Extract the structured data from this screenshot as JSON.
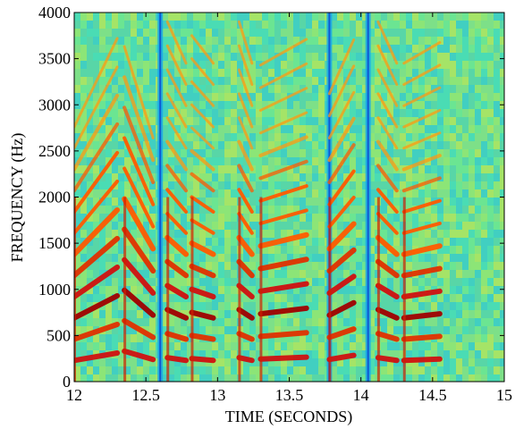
{
  "chart_data": {
    "type": "heatmap",
    "title": "",
    "xlabel": "TIME (SECONDS)",
    "ylabel": "FREQUENCY (Hz)",
    "xlim": [
      12,
      15
    ],
    "ylim": [
      0,
      4000
    ],
    "x_ticks": [
      12,
      12.5,
      13,
      13.5,
      14,
      14.5,
      15
    ],
    "x_tick_labels": [
      "12",
      "12.5",
      "13",
      "13.5",
      "14",
      "14.5",
      "15"
    ],
    "y_ticks": [
      0,
      500,
      1000,
      1500,
      2000,
      2500,
      3000,
      3500,
      4000
    ],
    "y_tick_labels": [
      "0",
      "500",
      "1000",
      "1500",
      "2000",
      "2500",
      "3000",
      "3500",
      "4000"
    ],
    "grid": false,
    "colormap": [
      "#00007f",
      "#0070ff",
      "#00ffff",
      "#7fff7f",
      "#ffff00",
      "#ff7f00",
      "#ff0000",
      "#7f0000"
    ],
    "background_color": "#58d89c",
    "voiced_segments": [
      {
        "start": 12.0,
        "end": 12.3,
        "f0_start": 230,
        "f0_end": 310
      },
      {
        "start": 12.35,
        "end": 12.55,
        "f0_start": 330,
        "f0_end": 240
      },
      {
        "start": 12.65,
        "end": 12.78,
        "f0_start": 260,
        "f0_end": 230
      },
      {
        "start": 12.82,
        "end": 12.97,
        "f0_start": 250,
        "f0_end": 230
      },
      {
        "start": 13.15,
        "end": 13.24,
        "f0_start": 260,
        "f0_end": 230
      },
      {
        "start": 13.3,
        "end": 13.62,
        "f0_start": 245,
        "f0_end": 265
      },
      {
        "start": 13.78,
        "end": 13.95,
        "f0_start": 240,
        "f0_end": 285
      },
      {
        "start": 14.12,
        "end": 14.25,
        "f0_start": 260,
        "f0_end": 230
      },
      {
        "start": 14.3,
        "end": 14.55,
        "f0_start": 230,
        "f0_end": 245
      }
    ],
    "silence_bands": [
      12.6,
      13.78,
      14.05
    ]
  }
}
